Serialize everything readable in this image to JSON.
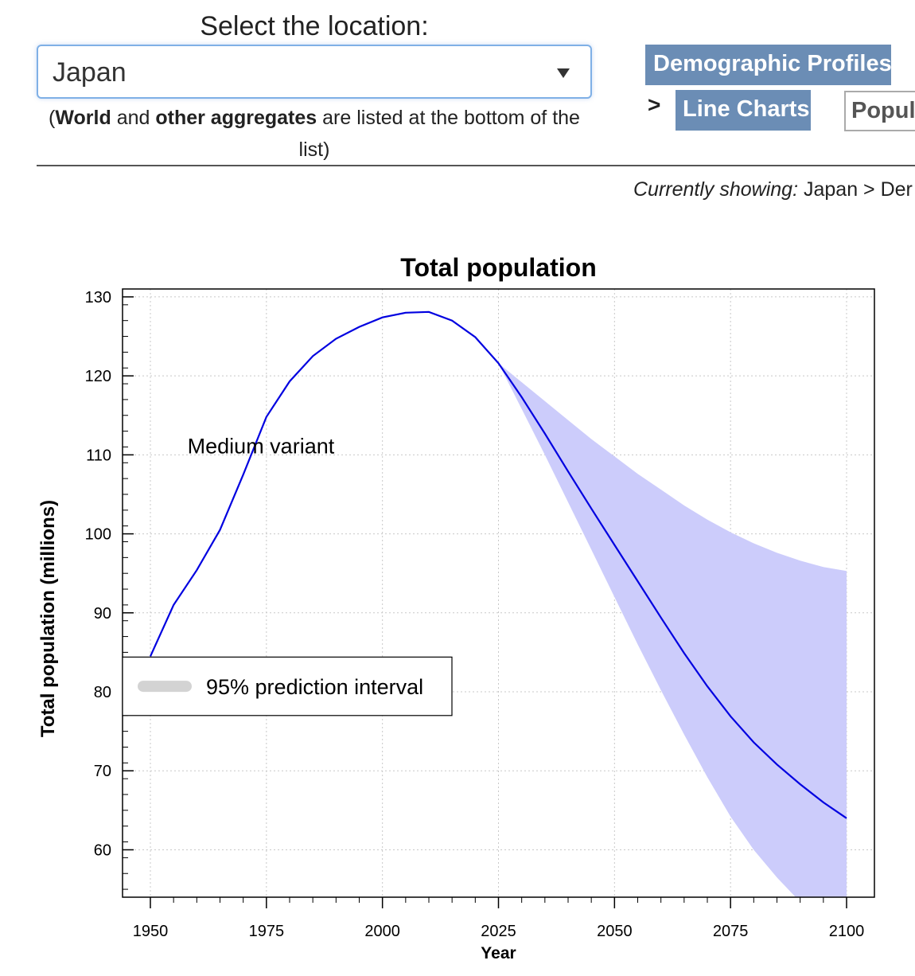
{
  "location_selector": {
    "label": "Select the location:",
    "selected": "Japan",
    "note_open": "(",
    "note_world": "World",
    "note_and": " and ",
    "note_aggregates": "other aggregates",
    "note_rest": " are listed at the bottom of the list)"
  },
  "nav": {
    "demographic_profiles": "Demographic Profiles",
    "separator": ">",
    "line_charts": "Line Charts",
    "population": "Popula"
  },
  "breadcrumb": {
    "prefix": "Currently showing:",
    "path": " Japan > Der"
  },
  "colors": {
    "median_line": "#0000e0",
    "interval_fill": "#ccccfb",
    "legend_swatch": "#d3d3d3",
    "nav_button": "#6b8db5"
  },
  "chart_data": {
    "type": "line",
    "title": "Total population",
    "xlabel": "Year",
    "ylabel": "Total population (millions)",
    "xlim": [
      1944,
      2106
    ],
    "ylim": [
      54,
      131
    ],
    "xticks": [
      1950,
      1975,
      2000,
      2025,
      2050,
      2075,
      2100
    ],
    "yticks": [
      60,
      70,
      80,
      90,
      100,
      110,
      120,
      130
    ],
    "grid": true,
    "annotation": "Medium variant",
    "series": [
      {
        "name": "Medium variant",
        "x": [
          1950,
          1955,
          1960,
          1965,
          1970,
          1975,
          1980,
          1985,
          1990,
          1995,
          2000,
          2005,
          2010,
          2015,
          2020,
          2025,
          2030,
          2035,
          2040,
          2045,
          2050,
          2055,
          2060,
          2065,
          2070,
          2075,
          2080,
          2085,
          2090,
          2095,
          2100
        ],
        "y": [
          84.5,
          91.0,
          95.4,
          100.5,
          107.5,
          114.8,
          119.3,
          122.5,
          124.7,
          126.2,
          127.4,
          128.0,
          128.1,
          127.0,
          124.9,
          121.6,
          117.3,
          112.7,
          107.9,
          103.2,
          98.6,
          94.0,
          89.4,
          84.9,
          80.7,
          76.9,
          73.6,
          70.8,
          68.3,
          66.0,
          64.0
        ]
      }
    ],
    "intervals": [
      {
        "name": "95% prediction interval",
        "x": [
          2025,
          2030,
          2035,
          2040,
          2045,
          2050,
          2055,
          2060,
          2065,
          2070,
          2075,
          2080,
          2085,
          2090,
          2095,
          2100
        ],
        "lower": [
          121.6,
          115.8,
          110.0,
          104.0,
          98.0,
          92.0,
          86.0,
          80.2,
          74.6,
          69.2,
          64.2,
          60.0,
          56.5,
          53.4,
          50.6,
          48.2
        ],
        "upper": [
          121.6,
          119.2,
          116.8,
          114.4,
          112.0,
          109.8,
          107.6,
          105.6,
          103.6,
          101.8,
          100.2,
          98.8,
          97.6,
          96.6,
          95.8,
          95.3
        ]
      }
    ],
    "legend": {
      "entries": [
        "95% prediction interval"
      ],
      "placement": "left"
    }
  }
}
